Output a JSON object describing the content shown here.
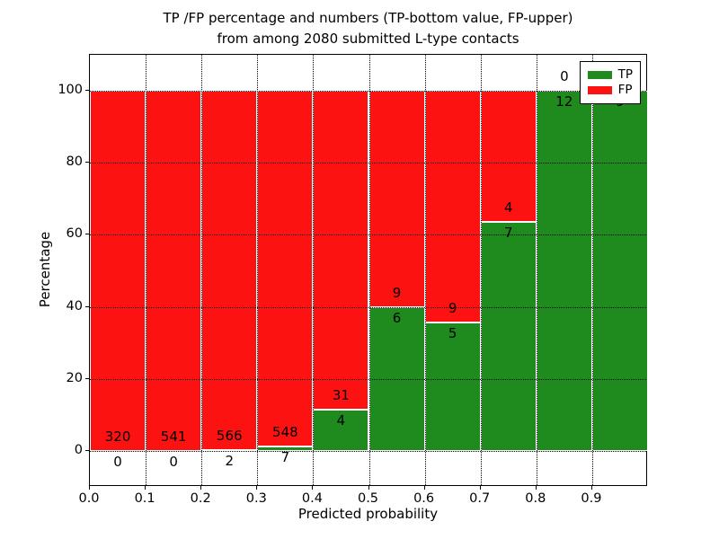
{
  "figure": {
    "title_line1": "TP /FP percentage and numbers (TP-bottom value, FP-upper)",
    "title_line2": "from among 2080 submitted L-type contacts"
  },
  "chart_data": {
    "type": "bar",
    "stacked": true,
    "normalized_to_percent": 100,
    "title": "TP /FP percentage and numbers (TP-bottom value, FP-upper) from among 2080 submitted L-type contacts",
    "xlabel": "Predicted probability",
    "ylabel": "Percentage",
    "xlim": [
      0.0,
      1.0
    ],
    "ylim": [
      -10,
      110
    ],
    "bin_width": 0.1,
    "bin_starts": [
      0.0,
      0.1,
      0.2,
      0.3,
      0.4,
      0.5,
      0.6,
      0.7,
      0.8,
      0.9
    ],
    "xticks": {
      "values": [
        0.0,
        0.1,
        0.2,
        0.3,
        0.4,
        0.5,
        0.6,
        0.7,
        0.8,
        0.9
      ],
      "labels": [
        "0.0",
        "0.1",
        "0.2",
        "0.3",
        "0.4",
        "0.5",
        "0.6",
        "0.7",
        "0.8",
        "0.9"
      ]
    },
    "yticks": {
      "values": [
        0,
        20,
        40,
        60,
        80,
        100
      ],
      "labels": [
        "0",
        "20",
        "40",
        "60",
        "80",
        "100"
      ]
    },
    "grid": "dotted black, drawn above bars",
    "series": [
      {
        "name": "TP",
        "role": "bottom",
        "color": "#1f8b1f",
        "values": [
          0,
          0,
          2,
          7,
          4,
          6,
          5,
          7,
          12,
          9
        ]
      },
      {
        "name": "FP",
        "role": "top",
        "color": "#fc1311",
        "values": [
          320,
          541,
          566,
          548,
          31,
          9,
          9,
          4,
          0,
          0
        ]
      }
    ],
    "tp_percent_of_bin": [
      0,
      0,
      0.35,
      1.26,
      11.43,
      40.0,
      35.71,
      63.64,
      100.0,
      100.0
    ],
    "bar_labels": {
      "fp_upper": [
        "320",
        "541",
        "566",
        "548",
        "31",
        "9",
        "9",
        "4",
        "0",
        ""
      ],
      "tp_lower": [
        "0",
        "0",
        "2",
        "7",
        "4",
        "6",
        "5",
        "7",
        "12",
        "9"
      ],
      "note": "FP label of the 0.9-1.0 bin is hidden behind the legend box"
    },
    "legend": {
      "position": "upper right",
      "entries": [
        {
          "label": "TP",
          "color": "#1f8b1f"
        },
        {
          "label": "FP",
          "color": "#fc1311"
        }
      ]
    }
  },
  "colors": {
    "tp_green": "#1f8b1f",
    "fp_red": "#fc1311",
    "bar_edge": "#ffffff",
    "grid": "#000000",
    "axes_edge": "#000000",
    "background": "#ffffff",
    "text": "#000000"
  }
}
